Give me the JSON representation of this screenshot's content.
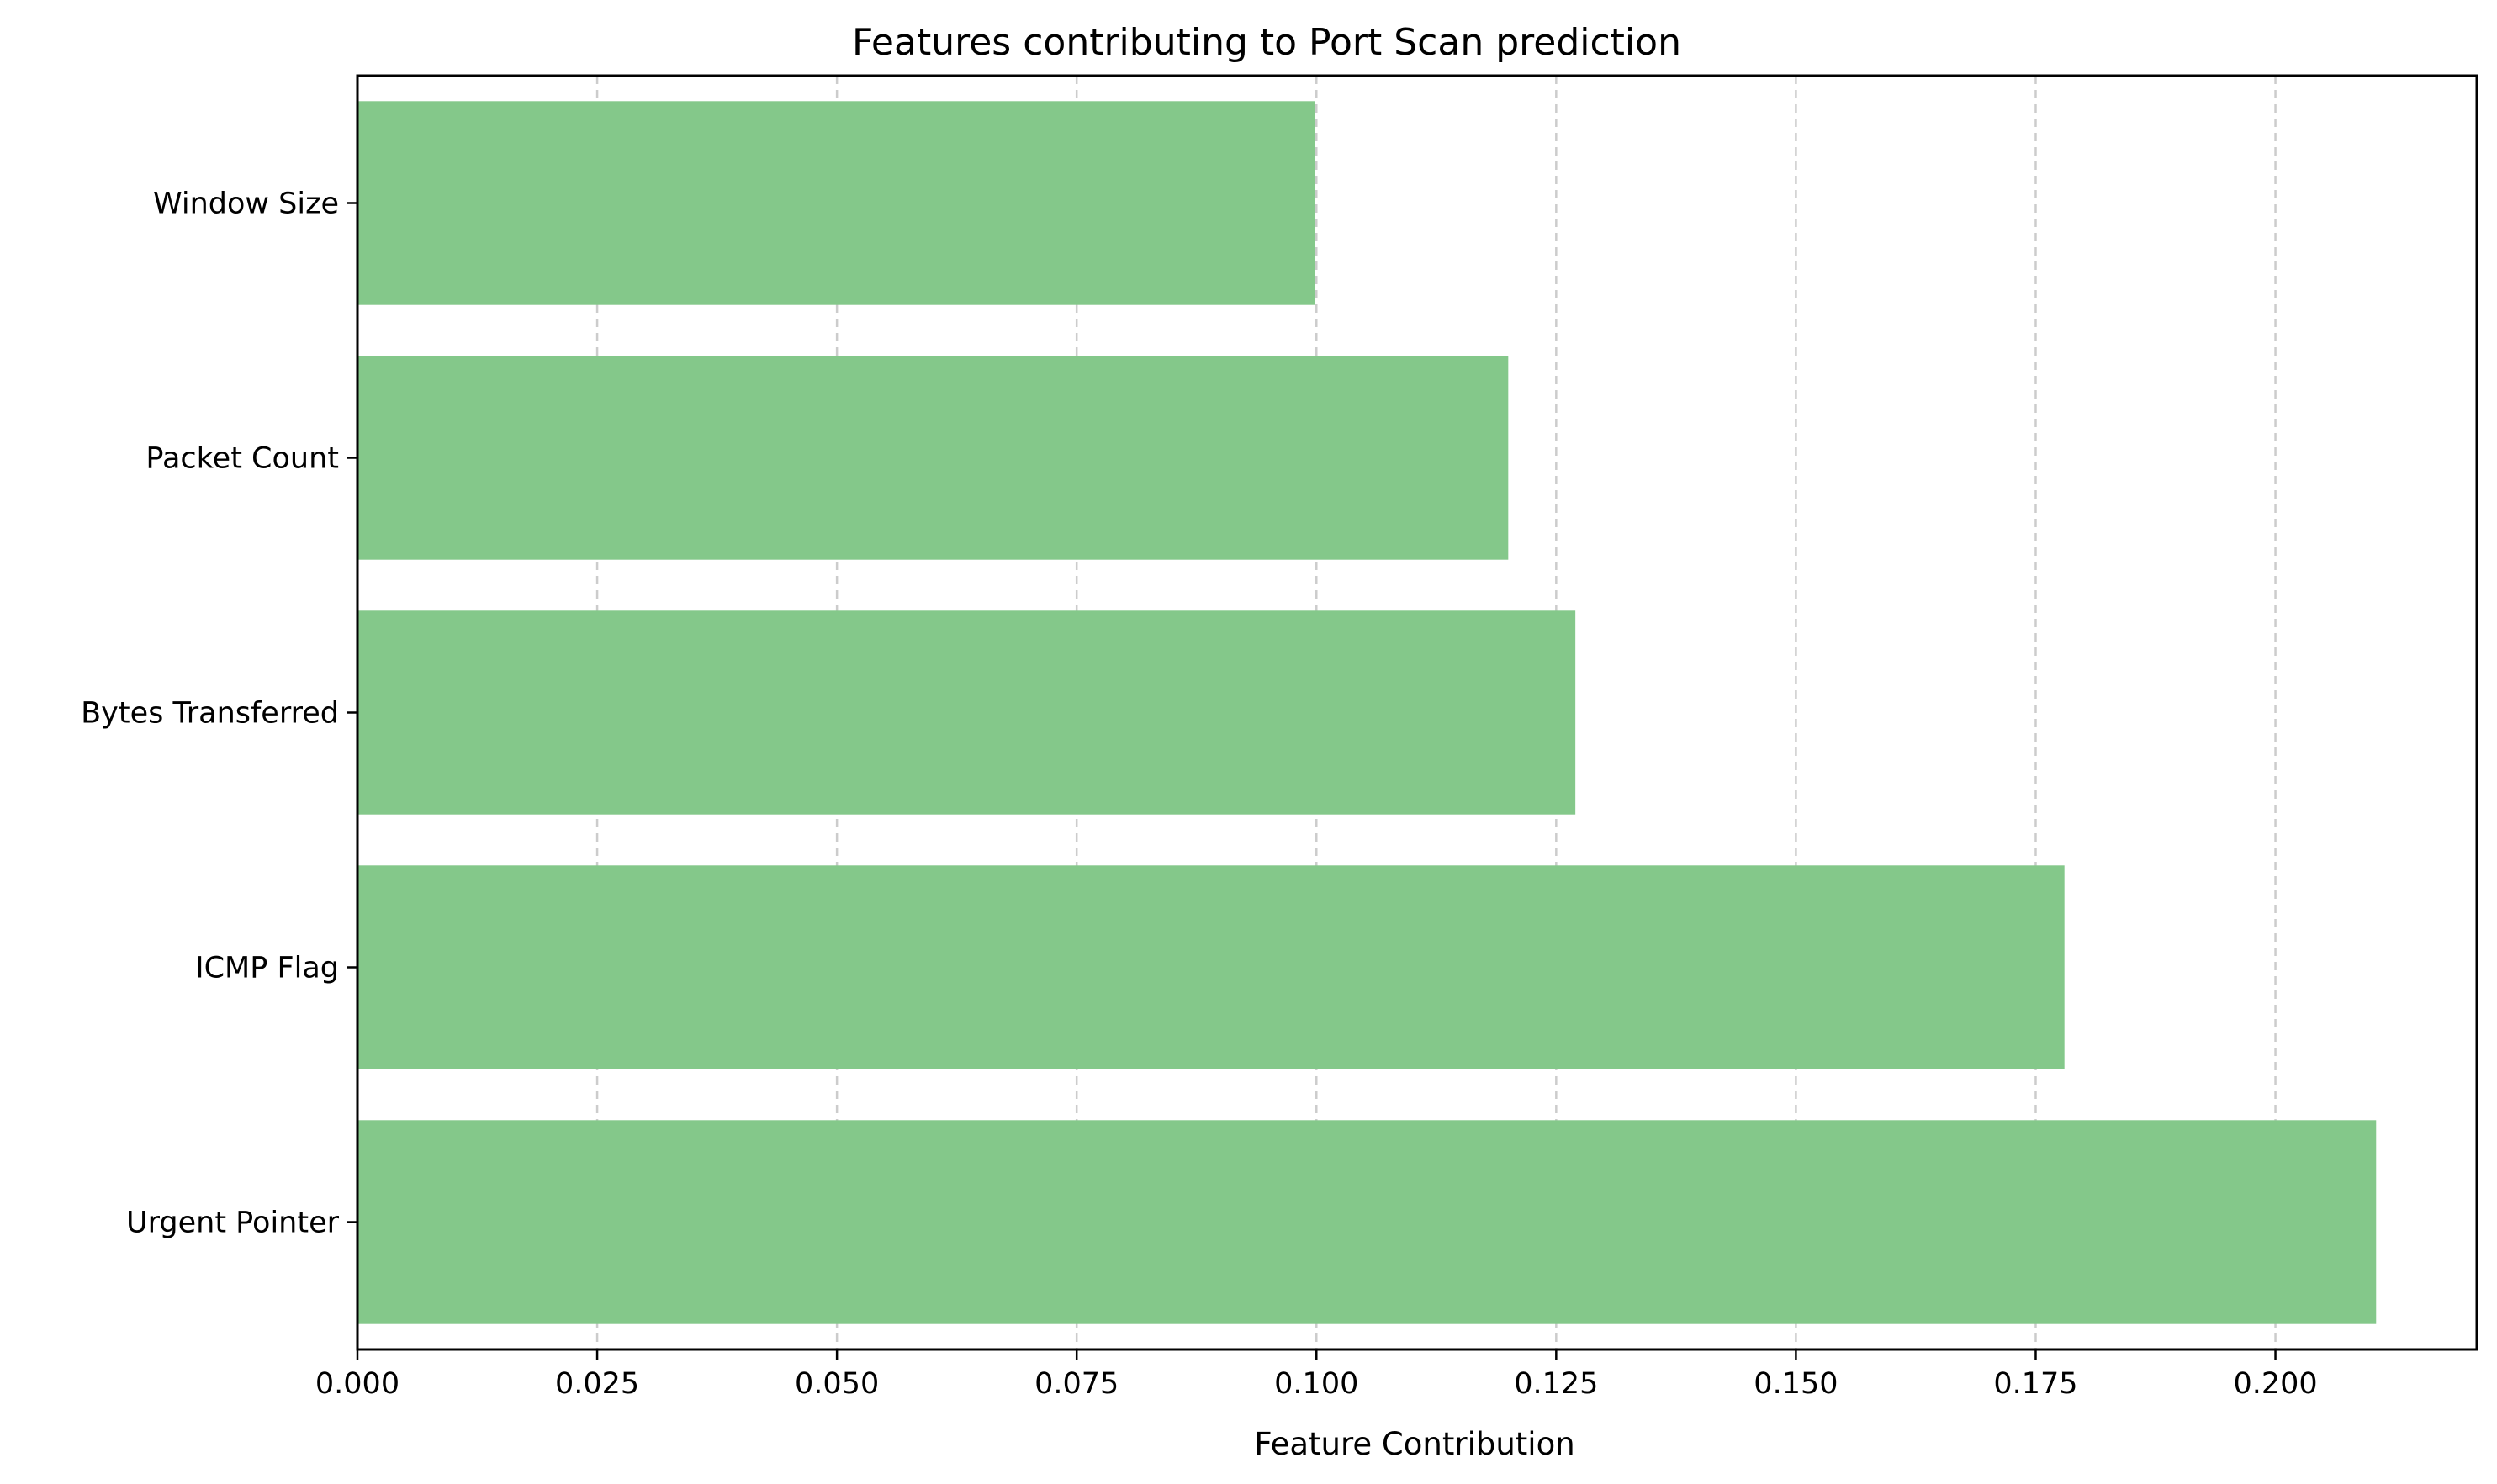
{
  "chart_data": {
    "type": "bar",
    "orientation": "horizontal",
    "title": "Features contributing to Port Scan prediction",
    "xlabel": "Feature Contribution",
    "ylabel": "",
    "categories": [
      "Urgent Pointer",
      "ICMP Flag",
      "Bytes Transferred",
      "Packet Count",
      "Window Size"
    ],
    "values": [
      0.2105,
      0.178,
      0.127,
      0.12,
      0.0998
    ],
    "xlim": [
      0,
      0.221
    ],
    "xticks": [
      0.0,
      0.025,
      0.05,
      0.075,
      0.1,
      0.125,
      0.15,
      0.175,
      0.2
    ],
    "xtick_labels": [
      "0.000",
      "0.025",
      "0.050",
      "0.075",
      "0.100",
      "0.125",
      "0.150",
      "0.175",
      "0.200"
    ],
    "grid": "x-dashed",
    "legend": "none",
    "colors": {
      "bar": "#84c88a",
      "grid": "#cccccc",
      "axis": "#000000"
    }
  }
}
